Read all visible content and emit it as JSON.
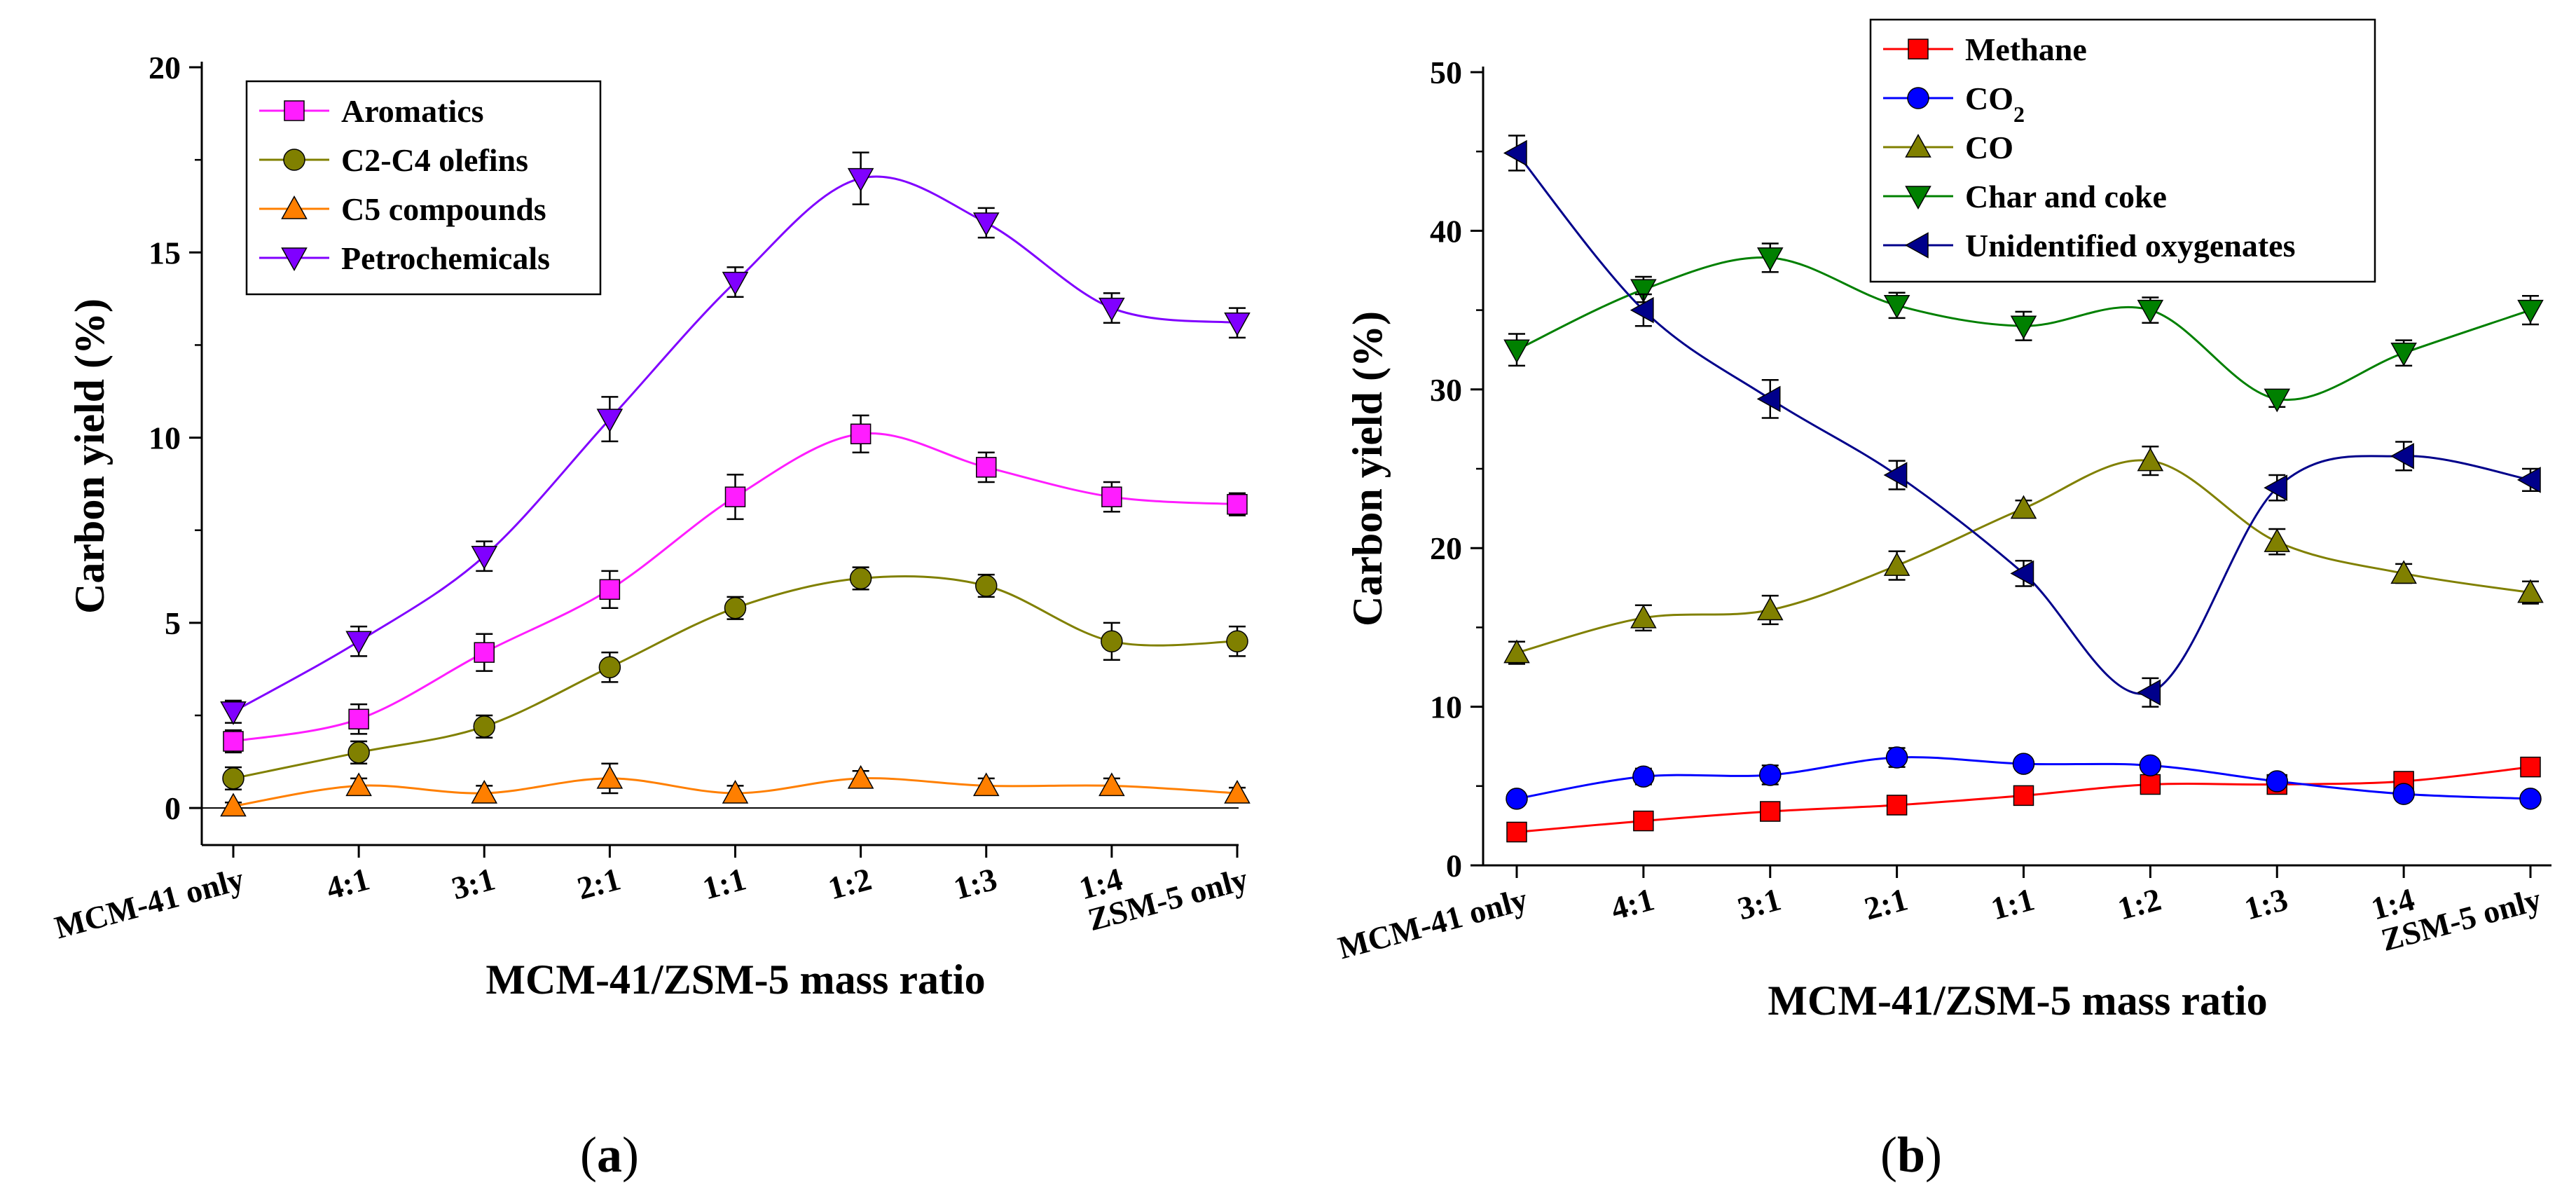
{
  "figure": {
    "panel_a_label": "a",
    "panel_b_label": "b"
  },
  "chart_data": [
    {
      "type": "line",
      "panel": "a",
      "xlabel": "MCM-41/ZSM-5 mass ratio",
      "ylabel": "Carbon yield (%)",
      "categories": [
        "MCM-41 only",
        "4:1",
        "3:1",
        "2:1",
        "1:1",
        "1:2",
        "1:3",
        "1:4",
        "ZSM-5 only"
      ],
      "ylim": [
        -1,
        20
      ],
      "yticks": [
        0,
        5,
        10,
        15,
        20
      ],
      "legend_position": "top-left",
      "series": [
        {
          "name": "Aromatics",
          "color": "#ff1dff",
          "marker": "square",
          "values": [
            1.8,
            2.4,
            4.2,
            5.9,
            8.4,
            10.1,
            9.2,
            8.4,
            8.2
          ],
          "errors": [
            0.3,
            0.4,
            0.5,
            0.5,
            0.6,
            0.5,
            0.4,
            0.4,
            0.3
          ]
        },
        {
          "name": "C2-C4 olefins",
          "color": "#808000",
          "marker": "circle",
          "values": [
            0.8,
            1.5,
            2.2,
            3.8,
            5.4,
            6.2,
            6.0,
            4.5,
            4.5
          ],
          "errors": [
            0.3,
            0.3,
            0.3,
            0.4,
            0.3,
            0.3,
            0.3,
            0.5,
            0.4
          ]
        },
        {
          "name": "C5 compounds",
          "color": "#ff7f00",
          "marker": "triangle-up",
          "values": [
            0.05,
            0.6,
            0.4,
            0.8,
            0.4,
            0.8,
            0.6,
            0.6,
            0.4
          ],
          "errors": [
            0.1,
            0.2,
            0.2,
            0.4,
            0.2,
            0.2,
            0.2,
            0.2,
            0.15
          ]
        },
        {
          "name": "Petrochemicals",
          "color": "#8000ff",
          "marker": "triangle-down",
          "values": [
            2.6,
            4.5,
            6.8,
            10.5,
            14.2,
            17.0,
            15.8,
            13.5,
            13.1
          ],
          "errors": [
            0.3,
            0.4,
            0.4,
            0.6,
            0.4,
            0.7,
            0.4,
            0.4,
            0.4
          ]
        }
      ]
    },
    {
      "type": "line",
      "panel": "b",
      "xlabel": "MCM-41/ZSM-5 mass ratio",
      "ylabel": "Carbon yield (%)",
      "categories": [
        "MCM-41 only",
        "4:1",
        "3:1",
        "2:1",
        "1:1",
        "1:2",
        "1:3",
        "1:4",
        "ZSM-5 only"
      ],
      "ylim": [
        0,
        50
      ],
      "yticks": [
        0,
        10,
        20,
        30,
        40,
        50
      ],
      "legend_position": "top-right",
      "series": [
        {
          "name": "Methane",
          "name_main": "Methane",
          "name_sub": "",
          "color": "#ff0000",
          "marker": "square",
          "values": [
            2.1,
            2.8,
            3.4,
            3.8,
            4.4,
            5.1,
            5.1,
            5.3,
            6.2
          ],
          "errors": [
            0.5,
            0.5,
            0.5,
            0.5,
            0.5,
            0.5,
            0.5,
            0.5,
            0.5
          ]
        },
        {
          "name": "CO2",
          "name_main": "CO",
          "name_sub": "2",
          "color": "#0000ff",
          "marker": "circle",
          "values": [
            4.2,
            5.6,
            5.7,
            6.8,
            6.4,
            6.3,
            5.3,
            4.5,
            4.2
          ],
          "errors": [
            0.4,
            0.5,
            0.6,
            0.6,
            0.4,
            0.4,
            0.4,
            0.4,
            0.4
          ]
        },
        {
          "name": "CO",
          "name_main": "CO",
          "name_sub": "",
          "color": "#808000",
          "marker": "triangle-up",
          "values": [
            13.4,
            15.6,
            16.1,
            18.9,
            22.5,
            25.5,
            20.4,
            18.4,
            17.2
          ],
          "errors": [
            0.7,
            0.8,
            0.9,
            0.9,
            0.5,
            0.9,
            0.8,
            0.6,
            0.7
          ]
        },
        {
          "name": "Char and coke",
          "name_main": "Char and coke",
          "name_sub": "",
          "color": "#008000",
          "marker": "triangle-down",
          "values": [
            32.5,
            36.3,
            38.3,
            35.3,
            34.0,
            35.0,
            29.4,
            32.3,
            35.0
          ],
          "errors": [
            1.0,
            0.8,
            0.9,
            0.8,
            0.9,
            0.8,
            0.5,
            0.8,
            0.9
          ]
        },
        {
          "name": "Unidentified oxygenates",
          "name_main": "Unidentified oxygenates",
          "name_sub": "",
          "color": "#00008b",
          "marker": "triangle-left",
          "values": [
            44.9,
            35.0,
            29.4,
            24.6,
            18.4,
            10.9,
            23.8,
            25.8,
            24.3
          ],
          "errors": [
            1.1,
            1.0,
            1.2,
            0.9,
            0.8,
            0.9,
            0.8,
            0.9,
            0.7
          ]
        }
      ]
    }
  ]
}
